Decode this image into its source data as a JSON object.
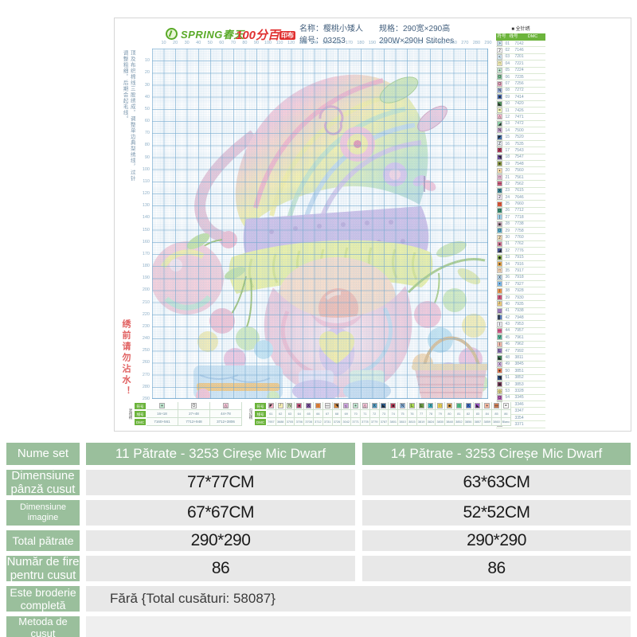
{
  "header": {
    "brand1": "SPRING春天",
    "brand2": "100分百",
    "brand2_suffix": "印布",
    "name_label": "名称：樱桃小矮人",
    "code_label": "编号：03253",
    "spec_label": "规格：290宽×290高",
    "spec_en": "290W×290H Stitches"
  },
  "sheet": {
    "side_note": "顶及布织棉线三股绣成，调整单边典型绣线，过针调整粗细，后期会起毛线。",
    "warning": "绣前请勿沾水！"
  },
  "chart": {
    "max": 290,
    "step": 10,
    "ticks": [
      10,
      20,
      30,
      40,
      50,
      60,
      70,
      80,
      90,
      100,
      110,
      120,
      130,
      140,
      150,
      160,
      170,
      180,
      190,
      200,
      210,
      220,
      230,
      240,
      250,
      260,
      270,
      280,
      290
    ]
  },
  "legend": {
    "title": "■ 全针绣",
    "columns": [
      "符号",
      "线号",
      "DMC"
    ],
    "rows": [
      [
        ">",
        "#cfe9f5",
        "01",
        "7142"
      ],
      [
        "2",
        "#ffffff",
        "02",
        "7146"
      ],
      [
        "<",
        "#d6ebf7",
        "03",
        "7201"
      ],
      [
        "□",
        "#f9f3b4",
        "04",
        "7221"
      ],
      [
        "+",
        "#bfe6cf",
        "05",
        "7224"
      ],
      [
        "O",
        "#7fc89a",
        "06",
        "7235"
      ],
      [
        "O",
        "#f2a9c4",
        "07",
        "7256"
      ],
      [
        "N",
        "#9fb8e8",
        "08",
        "7272"
      ],
      [
        "■",
        "#4a6fb5",
        "09",
        "7414"
      ],
      [
        "◣",
        "#4f8f5a",
        "10",
        "7420"
      ],
      [
        "=",
        "#f3f7bc",
        "11",
        "7426"
      ],
      [
        "△",
        "#f5b8cc",
        "12",
        "7471"
      ],
      [
        "◢",
        "#8fd0a8",
        "13",
        "7472"
      ],
      [
        "N",
        "#cfa8d8",
        "14",
        "7500"
      ],
      [
        "◤",
        "#3f6faa",
        "15",
        "7520"
      ],
      [
        "Z",
        "#e8eef5",
        "16",
        "7535"
      ],
      [
        "X",
        "#b83a5c",
        "17",
        "7543"
      ],
      [
        "◥",
        "#6a4f9a",
        "18",
        "7547"
      ],
      [
        "●",
        "#8a9a3f",
        "19",
        "7548"
      ],
      [
        "•",
        "#f5d9a8",
        "20",
        "7560"
      ],
      [
        "□",
        "#e8b8d4",
        "21",
        "7561"
      ],
      [
        "—",
        "#c85a7a",
        "22",
        "7562"
      ],
      [
        "X",
        "#3a8a9a",
        "23",
        "7615"
      ],
      [
        "2",
        "#f0e8f8",
        "24",
        "7646"
      ],
      [
        "□",
        "#e85a3a",
        "25",
        "7660"
      ],
      [
        "O",
        "#3a9a7a",
        "26",
        "7712"
      ],
      [
        "|",
        "#9acfe8",
        "27",
        "7718"
      ],
      [
        "▣",
        "#f5c8e0",
        "28",
        "7738"
      ],
      [
        "O",
        "#5ab8d8",
        "29",
        "7758"
      ],
      [
        "2",
        "#f5e0b8",
        "30",
        "7760"
      ],
      [
        "●",
        "#d87a9a",
        "31",
        "7762"
      ],
      [
        "◢",
        "#4a5a9a",
        "32",
        "7776"
      ],
      [
        "◆",
        "#8ab84a",
        "33",
        "7915"
      ],
      [
        "●",
        "#e8a84a",
        "34",
        "7916"
      ],
      [
        "□",
        "#f8d8b8",
        "35",
        "7917"
      ],
      [
        "X",
        "#b8d8f0",
        "36",
        "7918"
      ],
      [
        "•",
        "#7ab8e8",
        "37",
        "7927"
      ],
      [
        "/",
        "#e8924a",
        "38",
        "7928"
      ],
      [
        "/",
        "#c8527a",
        "39",
        "7930"
      ],
      [
        "┘",
        "#e8c87a",
        "40",
        "7935"
      ],
      [
        "_",
        "#9a7ab8",
        "41",
        "7938"
      ],
      [
        "▌",
        "#527ab8",
        "42",
        "7948"
      ],
      [
        "I",
        "#e8e8f0",
        "43",
        "7953"
      ],
      [
        "—",
        "#d85a8a",
        "44",
        "7957"
      ],
      [
        "V",
        "#52b89a",
        "45",
        "7961"
      ],
      [
        "I",
        "#f0b8a8",
        "46",
        "7962"
      ],
      [
        "L",
        "#8a6fb8",
        "47",
        "7992"
      ],
      [
        "◣",
        "#3a7a52",
        "48",
        "3811"
      ],
      [
        "X",
        "#d8b8e8",
        "49",
        "3845"
      ],
      [
        "●",
        "#e87a52",
        "50",
        "3851"
      ],
      [
        "◥",
        "#2a4a7a",
        "51",
        "3852"
      ],
      [
        "■",
        "#7a3a5a",
        "52",
        "3853"
      ],
      [
        "◎",
        "#f5e892",
        "53",
        "3328"
      ],
      [
        "O",
        "#b85ab8",
        "54",
        "3345"
      ],
      [
        "▩",
        "#92d852",
        "55",
        "3346"
      ],
      [
        "/",
        "#f5a8b8",
        "56",
        "3347"
      ],
      [
        "◥",
        "#5292d8",
        "57",
        "3354"
      ],
      [
        "<",
        "#e85292",
        "58",
        "3371"
      ]
    ]
  },
  "blend_legend": {
    "title": "混线绣",
    "columns": [
      "符号",
      "线号",
      "DMC"
    ],
    "cols": [
      [
        "+",
        "#bfe6cf",
        "16+18",
        "7160+561"
      ],
      [
        "O",
        "#ffffff",
        "27+48",
        "7712+948"
      ],
      [
        "△",
        "#f6c4d8",
        "44+78",
        "3712+3806"
      ]
    ]
  },
  "edge_legend": {
    "title": "勾边绣",
    "columns": [
      "符号",
      "线号",
      "DMC"
    ],
    "cols": [
      [
        "◤",
        "#f4a9c0",
        "61",
        "7957"
      ],
      [
        "┘",
        "#f6eeb2",
        "62",
        "3688"
      ],
      [
        "N",
        "#d3ecbc",
        "63",
        "3705"
      ],
      [
        "●",
        "#c4507a",
        "64",
        "3706"
      ],
      [
        "X",
        "#7a4fa0",
        "65",
        "3708"
      ],
      [
        "□",
        "#f08a3a",
        "66",
        "3712"
      ],
      [
        "—",
        "#e8e8e8",
        "67",
        "3731"
      ],
      [
        "◥",
        "#d8883a",
        "68",
        "3726"
      ],
      [
        "┐",
        "#c8a0d8",
        "69",
        "3042"
      ],
      [
        "+",
        "#bfe6cf",
        "70",
        "3771"
      ],
      [
        "△",
        "#f6c4d8",
        "71",
        "3778"
      ],
      [
        "X",
        "#52a0c8",
        "72",
        "3779"
      ],
      [
        "◣",
        "#2a5a8a",
        "73",
        "3787"
      ],
      [
        "■",
        "#c03a5a",
        "74",
        "3801"
      ],
      [
        "N",
        "#88b8e8",
        "75",
        "3810"
      ],
      [
        "L",
        "#a8d852",
        "76",
        "3815"
      ],
      [
        "L",
        "#6a9a42",
        "77",
        "3819"
      ],
      [
        "X",
        "#3ab8c8",
        "78",
        "3824"
      ],
      [
        "□",
        "#f0d852",
        "79",
        "3830"
      ],
      [
        "■",
        "#e8a852",
        "80",
        "3848"
      ],
      [
        "□",
        "#52c88a",
        "81",
        "3852"
      ],
      [
        "X",
        "#3a6ac8",
        "82",
        "3856"
      ],
      [
        "◣",
        "#9a52c8",
        "83",
        "3857"
      ],
      [
        "+",
        "#f6b8a0",
        "84",
        "3859"
      ],
      [
        "—",
        "#c87a52",
        "85",
        "3860"
      ],
      [
        "=",
        "#ffffff",
        "86",
        "Blanc"
      ]
    ]
  },
  "table": {
    "rows": [
      {
        "type": "header",
        "label": "Nume set",
        "col1": "11 Pătrate - 3253 Cireșe Mic Dwarf",
        "col2": "14 Pătrate - 3253 Cireșe Mic Dwarf"
      },
      {
        "label": "Dimensiune pânză cusut",
        "col1": "77*77CM",
        "col2": "63*63CM"
      },
      {
        "label": "Dimensiune imagine",
        "col1": "67*67CM",
        "col2": "52*52CM"
      },
      {
        "label": "Total pătrate",
        "col1": "290*290",
        "col2": "290*290"
      },
      {
        "label": "Număr de fire pentru cusut",
        "col1": "86",
        "col2": "86"
      },
      {
        "label": "Este broderie completă",
        "span": "Fără {Total cusături: 58087}"
      },
      {
        "label": "Metoda de cusut",
        "span": ""
      }
    ]
  },
  "colors": {
    "table_green": "#9abf9c",
    "legend_green": "#6cb43c",
    "brand_green": "#5aaa28",
    "brand_red": "#e03030",
    "warning_red": "#e06060",
    "grid_blue": "#6ea5cd"
  },
  "artwork_palette": [
    "#f6c9d8",
    "#f4f0a9",
    "#c4e6c9",
    "#bcd9ef",
    "#d9c6ea",
    "#f9dcc8"
  ]
}
